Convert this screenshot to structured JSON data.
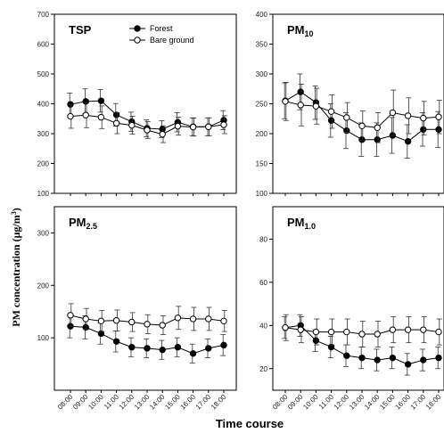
{
  "figure": {
    "ylabel_main": "PM concentration (μg/m",
    "ylabel_sup": "3",
    "ylabel_end": ")",
    "xlabel": "Time course"
  },
  "chart_data": [
    {
      "type": "line",
      "title_main": "TSP",
      "title_sub": "",
      "x": [
        "08:00",
        "09:00",
        "10:00",
        "11:00",
        "12:00",
        "13:00",
        "14:00",
        "15:00",
        "16:00",
        "17:00",
        "18:00"
      ],
      "ylim": [
        100,
        700
      ],
      "yticks": [
        100,
        200,
        300,
        400,
        500,
        600,
        700
      ],
      "legend": "top-center",
      "series": [
        {
          "name": "Forest",
          "marker": "filled",
          "values": [
            398,
            408,
            410,
            363,
            340,
            318,
            315,
            338,
            323,
            323,
            345
          ],
          "err": [
            38,
            42,
            38,
            38,
            32,
            28,
            28,
            32,
            30,
            30,
            32
          ]
        },
        {
          "name": "Bare ground",
          "marker": "open",
          "values": [
            358,
            362,
            355,
            335,
            328,
            312,
            298,
            325,
            322,
            323,
            330
          ],
          "err": [
            40,
            42,
            38,
            35,
            30,
            28,
            28,
            30,
            30,
            30,
            30
          ]
        }
      ]
    },
    {
      "type": "line",
      "title_main": "PM",
      "title_sub": "10",
      "x": [
        "08:00",
        "09:00",
        "10:00",
        "11:00",
        "12:00",
        "13:00",
        "14:00",
        "15:00",
        "16:00",
        "17:00",
        "18:00"
      ],
      "ylim": [
        100,
        400
      ],
      "yticks": [
        100,
        150,
        200,
        250,
        300,
        350,
        400
      ],
      "series": [
        {
          "name": "Forest",
          "marker": "filled",
          "values": [
            255,
            270,
            252,
            222,
            205,
            190,
            190,
            197,
            187,
            207,
            207
          ],
          "err": [
            30,
            30,
            28,
            28,
            30,
            28,
            28,
            30,
            28,
            28,
            30
          ]
        },
        {
          "name": "Bare ground",
          "marker": "open",
          "values": [
            254,
            248,
            246,
            237,
            227,
            213,
            210,
            235,
            230,
            226,
            228
          ],
          "err": [
            32,
            35,
            30,
            28,
            25,
            25,
            25,
            38,
            30,
            28,
            28
          ]
        }
      ]
    },
    {
      "type": "line",
      "title_main": "PM",
      "title_sub": "2.5",
      "x": [
        "08:00",
        "09:00",
        "10:00",
        "11:00",
        "12:00",
        "13:00",
        "14:00",
        "15:00",
        "16:00",
        "17:00",
        "18:00"
      ],
      "ylim": [
        0,
        350
      ],
      "yticks": [
        100,
        200,
        300
      ],
      "series": [
        {
          "name": "Forest",
          "marker": "filled",
          "values": [
            122,
            120,
            108,
            93,
            82,
            80,
            77,
            82,
            70,
            80,
            86
          ],
          "err": [
            22,
            22,
            20,
            20,
            18,
            18,
            18,
            18,
            18,
            18,
            20
          ]
        },
        {
          "name": "Bare ground",
          "marker": "open",
          "values": [
            143,
            136,
            132,
            133,
            130,
            126,
            124,
            138,
            136,
            136,
            132
          ],
          "err": [
            22,
            20,
            20,
            20,
            18,
            18,
            18,
            22,
            22,
            22,
            20
          ]
        }
      ]
    },
    {
      "type": "line",
      "title_main": "PM",
      "title_sub": "1.0",
      "x": [
        "08:00",
        "09:00",
        "10:00",
        "11:00",
        "12:00",
        "13:00",
        "14:00",
        "15:00",
        "16:00",
        "17:00",
        "18:00"
      ],
      "ylim": [
        10,
        95
      ],
      "yticks": [
        20,
        40,
        60,
        80
      ],
      "series": [
        {
          "name": "Forest",
          "marker": "filled",
          "values": [
            39,
            40,
            33,
            30,
            26,
            25,
            24,
            25,
            22,
            24,
            25
          ],
          "err": [
            5,
            5,
            5,
            5,
            5,
            5,
            5,
            5,
            5,
            5,
            5
          ]
        },
        {
          "name": "Bare ground",
          "marker": "open",
          "values": [
            39,
            38,
            37,
            37,
            37,
            36,
            36,
            38,
            38,
            38,
            37
          ],
          "err": [
            6,
            6,
            6,
            6,
            6,
            6,
            6,
            6,
            6,
            6,
            6
          ]
        }
      ]
    }
  ]
}
